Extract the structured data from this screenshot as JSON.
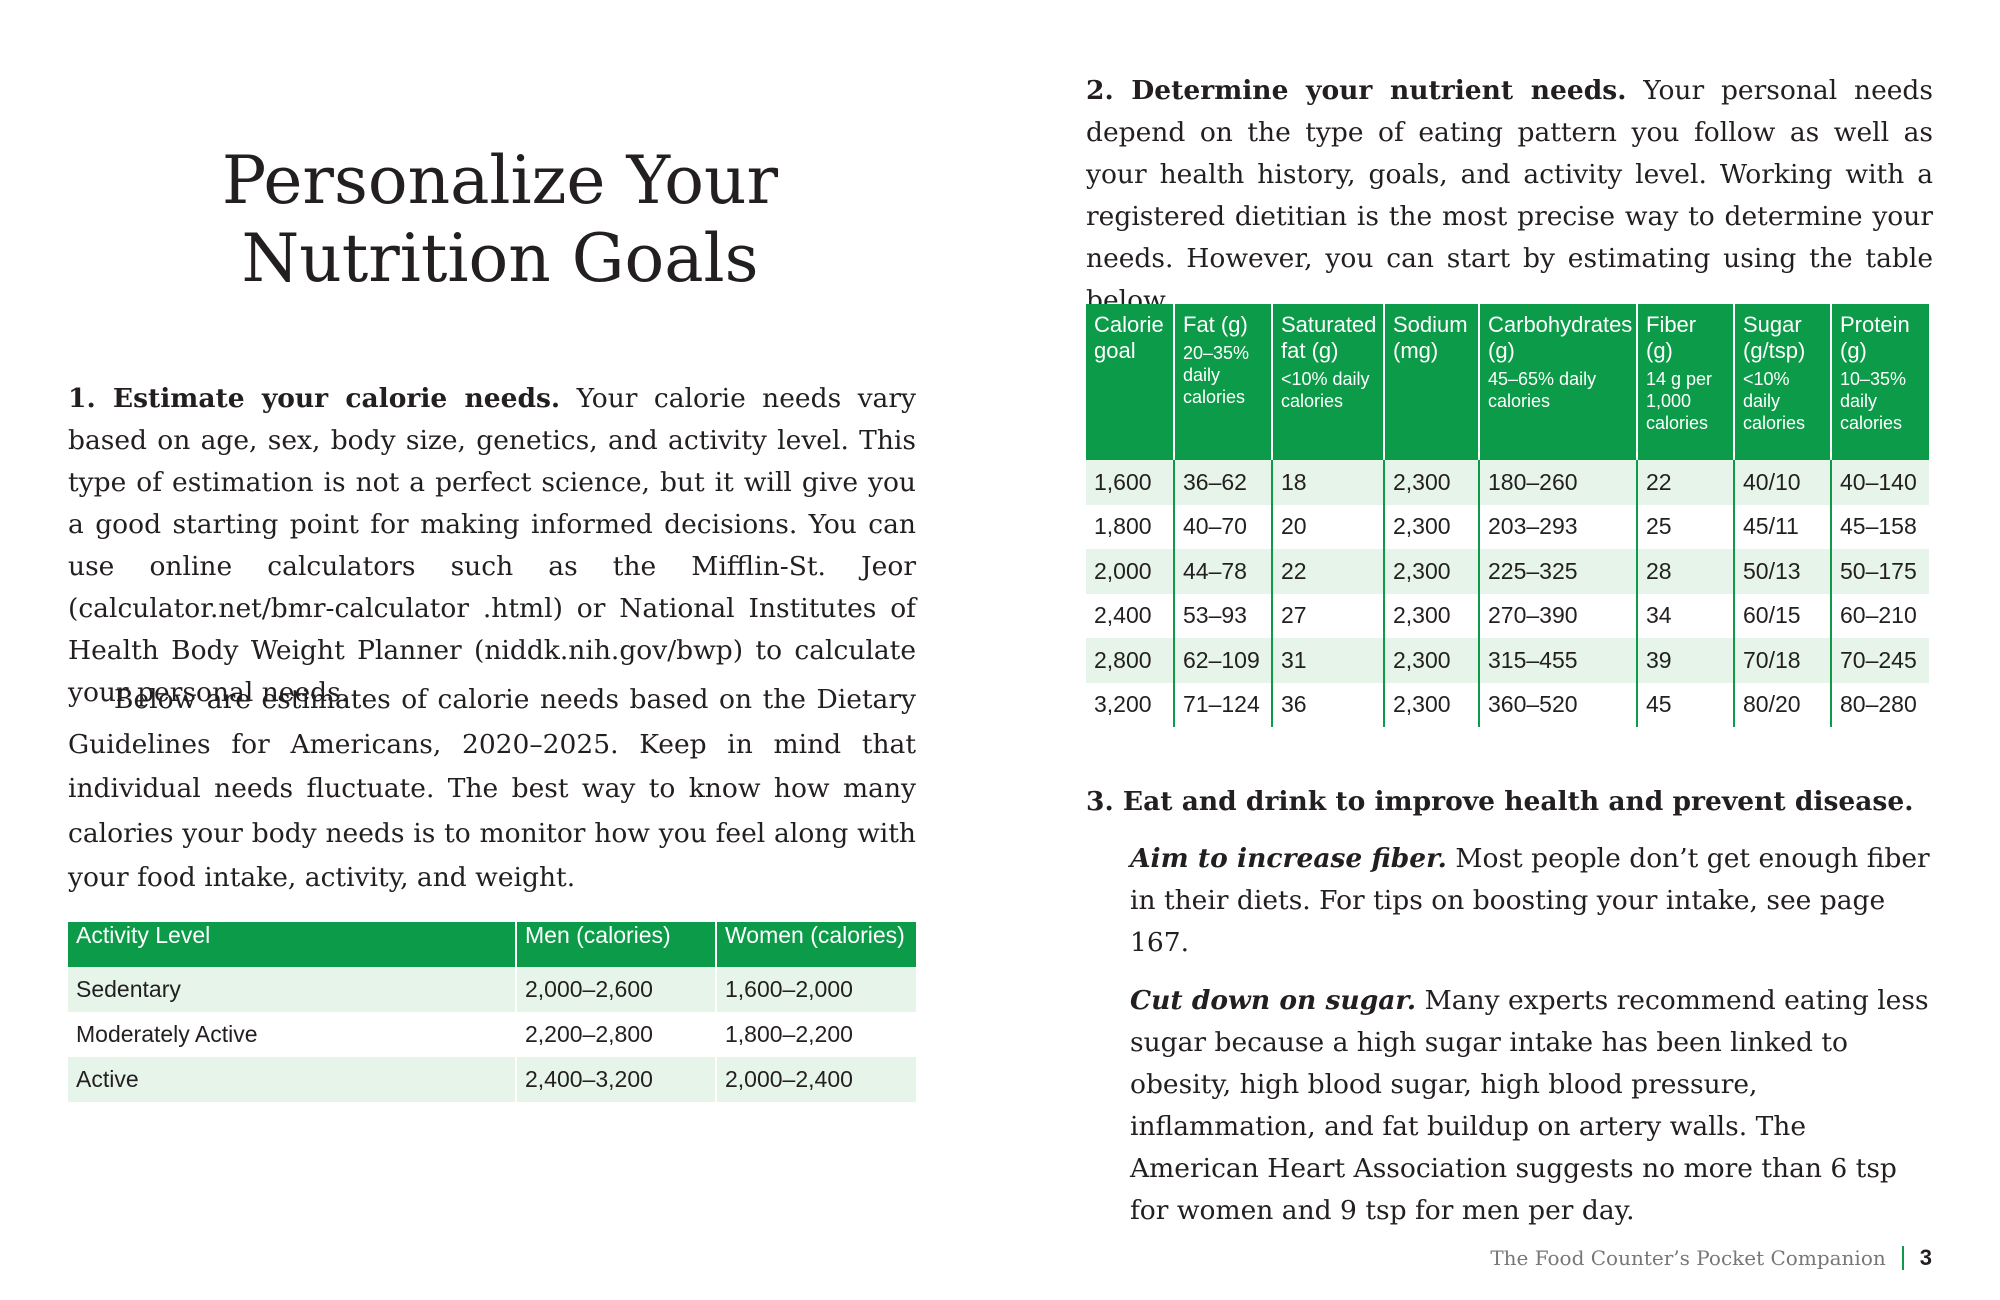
{
  "title": "Personalize Your Nutrition Goals",
  "section1": {
    "heading": "1. Estimate your calorie needs.",
    "body": "Your calorie needs vary based on age, sex, body size, genetics, and activity level. This type of estimation is not a perfect science, but it will give you a good starting point for making informed decisions. You can use online calculators such as the Mifflin-St. Jeor (calculator.net/bmr-calculator .html) or National Institutes of Health Body Weight Planner (niddk.nih.gov/bwp) to calculate your personal needs.",
    "body2": "Below are estimates of calorie needs based on the Dietary Guidelines for Americans, 2020–2025. Keep in mind that individual needs fluctuate. The best way to know how many calories your body needs is to monitor how you feel along with your food intake, activity, and weight."
  },
  "table1": {
    "headers": [
      "Activity Level",
      "Men (calories)",
      "Women (calories)"
    ],
    "rows": [
      [
        "Sedentary",
        "2,000–2,600",
        "1,600–2,000"
      ],
      [
        "Moderately Active",
        "2,200–2,800",
        "1,800–2,200"
      ],
      [
        "Active",
        "2,400–3,200",
        "2,000–2,400"
      ]
    ]
  },
  "section2": {
    "heading": "2. Determine your nutrient needs.",
    "body": "Your personal needs depend on the type of eating pattern you follow as well as your health history, goals, and activity level. Working with a registered dietitian is the most precise way to determine your needs. However, you can start by estimating using the table below."
  },
  "table2": {
    "headers": [
      {
        "label": "Calorie goal",
        "note": null
      },
      {
        "label": "Fat (g)",
        "note": "20–35% daily calories"
      },
      {
        "label": "Saturated fat (g)",
        "note": "<10% daily calories"
      },
      {
        "label": "Sodium (mg)",
        "note": null
      },
      {
        "label": "Carbohydrates (g)",
        "note": "45–65% daily calories"
      },
      {
        "label": "Fiber (g)",
        "note": "14 g per 1,000 calories"
      },
      {
        "label": "Sugar (g/tsp)",
        "note": "<10% daily calories"
      },
      {
        "label": "Protein (g)",
        "note": "10–35% daily calories"
      }
    ],
    "rows": [
      [
        "1,600",
        "36–62",
        "18",
        "2,300",
        "180–260",
        "22",
        "40/10",
        "40–140"
      ],
      [
        "1,800",
        "40–70",
        "20",
        "2,300",
        "203–293",
        "25",
        "45/11",
        "45–158"
      ],
      [
        "2,000",
        "44–78",
        "22",
        "2,300",
        "225–325",
        "28",
        "50/13",
        "50–175"
      ],
      [
        "2,400",
        "53–93",
        "27",
        "2,300",
        "270–390",
        "34",
        "60/15",
        "60–210"
      ],
      [
        "2,800",
        "62–109",
        "31",
        "2,300",
        "315–455",
        "39",
        "70/18",
        "70–245"
      ],
      [
        "3,200",
        "71–124",
        "36",
        "2,300",
        "360–520",
        "45",
        "80/20",
        "80–280"
      ]
    ]
  },
  "section3": {
    "heading": "3. Eat and drink to improve health and prevent disease.",
    "items": [
      {
        "lead": "Aim to increase fiber.",
        "text": "Most people don’t get enough fiber in their diets. For tips on boosting your intake, see page 167."
      },
      {
        "lead": "Cut down on sugar.",
        "text": "Many experts recommend eating less sugar because a high sugar intake has been linked to obesity, high blood sugar, high blood pressure, inflammation, and fat buildup on artery walls. The American Heart Association suggests no more than 6 tsp for women and 9 tsp for men per day."
      }
    ]
  },
  "footer": {
    "book": "The Food Counter’s Pocket Companion",
    "page": "3"
  }
}
